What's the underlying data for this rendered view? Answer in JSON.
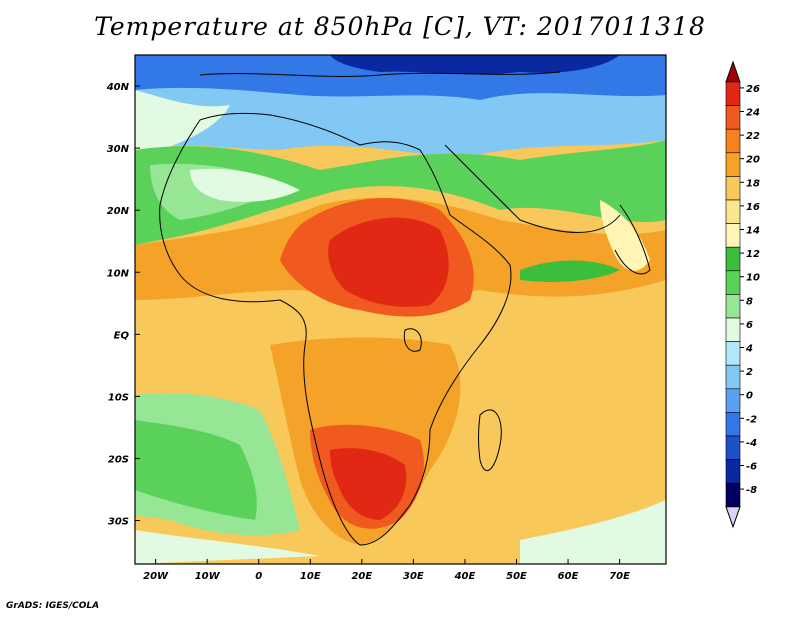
{
  "title": "Temperature at 850hPa [C], VT: 2017011318",
  "credit": "GrADS: IGES/COLA",
  "map": {
    "variable": "Temperature at 850hPa",
    "units": "C",
    "valid_time": "2017011318",
    "lon_range": [
      -24,
      79
    ],
    "lat_range": [
      -37,
      45
    ],
    "lon_ticks": [
      "20W",
      "10W",
      "0",
      "10E",
      "20E",
      "30E",
      "40E",
      "50E",
      "60E",
      "70E"
    ],
    "lat_ticks": [
      "40N",
      "30N",
      "20N",
      "10N",
      "EQ",
      "10S",
      "20S",
      "30S"
    ]
  },
  "colorbar": {
    "labels": [
      "26",
      "24",
      "22",
      "20",
      "18",
      "16",
      "14",
      "12",
      "10",
      "8",
      "6",
      "4",
      "2",
      "0",
      "-2",
      "-4",
      "-6",
      "-8"
    ],
    "colors": [
      "#a0000a",
      "#e12814",
      "#f05a1e",
      "#f5821e",
      "#f5a328",
      "#f8c85a",
      "#fae68c",
      "#fff5b4",
      "#3cbe3c",
      "#5ad25a",
      "#96e696",
      "#e1fae1",
      "#b4e6fa",
      "#82c8f5",
      "#5aa0f0",
      "#3278e6",
      "#1e50c8",
      "#0a28a0",
      "#000064",
      "#dcd2ff"
    ]
  }
}
